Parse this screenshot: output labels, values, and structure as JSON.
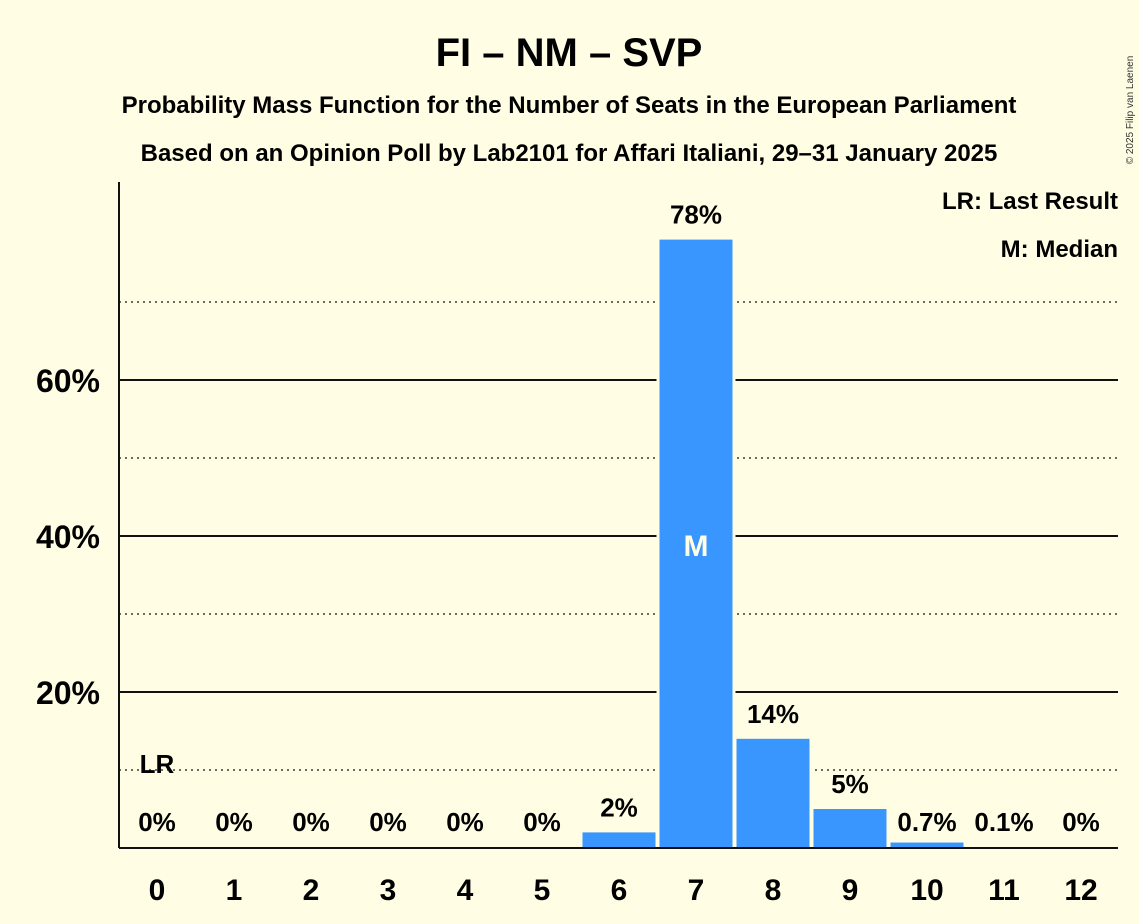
{
  "chart_data": {
    "type": "bar",
    "title": "FI – NM – SVP",
    "subtitle1": "Probability Mass Function for the Number of Seats in the European Parliament",
    "subtitle2": "Based on an Opinion Poll by Lab2101 for Affari Italiani, 29–31 January 2025",
    "categories": [
      "0",
      "1",
      "2",
      "3",
      "4",
      "5",
      "6",
      "7",
      "8",
      "9",
      "10",
      "11",
      "12"
    ],
    "values": [
      0,
      0,
      0,
      0,
      0,
      0,
      2,
      78,
      14,
      5,
      0.7,
      0.1,
      0
    ],
    "data_labels": [
      "0%",
      "0%",
      "0%",
      "0%",
      "0%",
      "0%",
      "2%",
      "78%",
      "14%",
      "5%",
      "0.7%",
      "0.1%",
      "0%"
    ],
    "ylim": [
      0,
      85
    ],
    "yticks": [
      {
        "value": 20,
        "label": "20%"
      },
      {
        "value": 40,
        "label": "40%"
      },
      {
        "value": 60,
        "label": "60%"
      }
    ],
    "minor_gridlines": [
      10,
      30,
      50,
      70
    ],
    "last_result_index": 0,
    "last_result_marker": "LR",
    "median_index": 7,
    "median_marker": "M",
    "legend": {
      "position": "top-right",
      "entries": [
        "LR: Last Result",
        "M: Median"
      ]
    },
    "bar_color": "#3A96FF",
    "copyright": "© 2025 Filip van Laenen"
  }
}
